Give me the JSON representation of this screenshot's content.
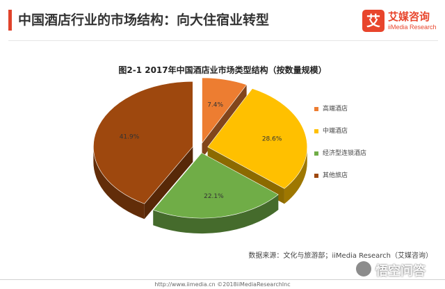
{
  "header": {
    "title": "中国酒店行业的市场结构：向大住宿业转型",
    "accent_color": "#e0432b"
  },
  "logo": {
    "mark": "艾",
    "name_cn": "艾媒咨询",
    "name_en": "iiMedia Research"
  },
  "chart_data": {
    "type": "pie",
    "title": "图2-1 2017年中国酒店业市场类型结构（按数量规模）",
    "style": "3d-exploded",
    "legend_position": "right",
    "categories": [
      "高端酒店",
      "中端酒店",
      "经济型连锁酒店",
      "其他旅店"
    ],
    "values": [
      7.4,
      28.6,
      22.1,
      41.9
    ],
    "labels": [
      "7.4%",
      "28.6%",
      "22.1%",
      "41.9%"
    ],
    "colors": [
      "#ed7d31",
      "#ffc000",
      "#70ad47",
      "#9e480e"
    ]
  },
  "source": "数据来源：文化与旅游部；iiMedia Research（艾媒咨询）",
  "footer": "http://www.iimedia.cn  ©2018iiMediaResearchInc",
  "watermark": {
    "text": "悟空问答",
    "icon": "speech-bubble-icon"
  }
}
